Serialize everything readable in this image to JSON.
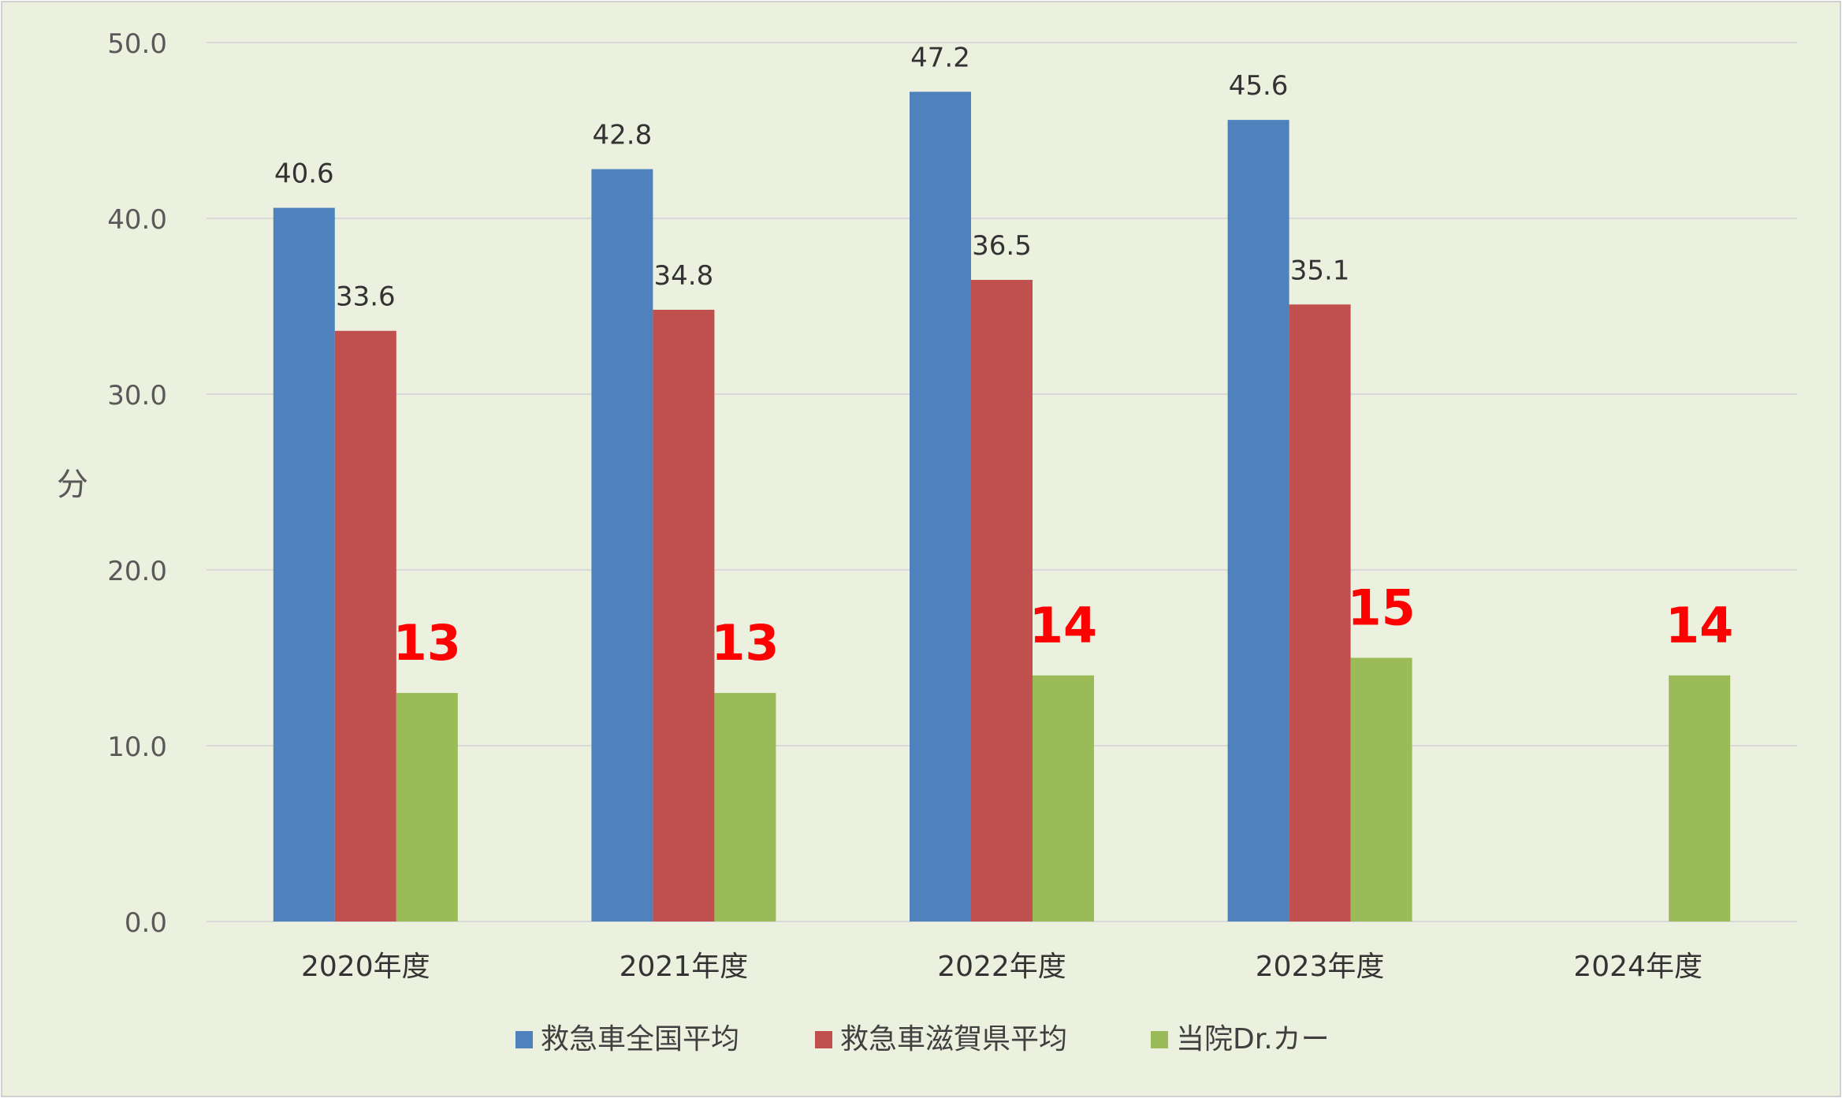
{
  "chart_data": {
    "type": "bar",
    "title": "",
    "ylabel": "分",
    "xlabel": "",
    "ylim": [
      0,
      50
    ],
    "yticks": [
      "0.0",
      "10.0",
      "20.0",
      "30.0",
      "40.0",
      "50.0"
    ],
    "grid": true,
    "legend_position": "bottom",
    "categories": [
      "2020年度",
      "2021年度",
      "2022年度",
      "2023年度",
      "2024年度"
    ],
    "series": [
      {
        "name": "救急車全国平均",
        "color": "#4F81BD",
        "values": [
          40.6,
          42.8,
          47.2,
          45.6,
          null
        ],
        "labels": [
          "40.6",
          "42.8",
          "47.2",
          "45.6",
          ""
        ],
        "label_color": "#333333"
      },
      {
        "name": "救急車滋賀県平均",
        "color": "#C0504D",
        "values": [
          33.6,
          34.8,
          36.5,
          35.1,
          null
        ],
        "labels": [
          "33.6",
          "34.8",
          "36.5",
          "35.1",
          ""
        ],
        "label_color": "#333333"
      },
      {
        "name": "当院Dr.カー",
        "color": "#9BBB59",
        "values": [
          13,
          13,
          14,
          15,
          14
        ],
        "labels": [
          "13",
          "13",
          "14",
          "15",
          "14"
        ],
        "label_color": "#FF0000"
      }
    ],
    "colors": {
      "background": "#EBF1DE",
      "gridline": "#D9D9D9",
      "axis_text": "#595959"
    }
  }
}
